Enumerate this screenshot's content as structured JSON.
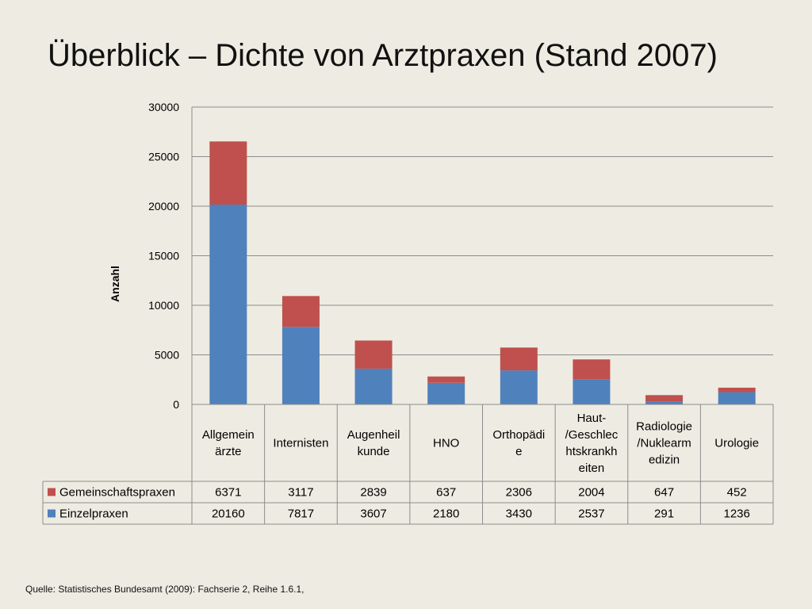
{
  "slide": {
    "title": "Überblick – Dichte von Arztpraxen (Stand 2007)",
    "source": "Quelle: Statistisches Bundesamt (2009): Fachserie 2, Reihe 1.6.1,"
  },
  "chart_data": {
    "type": "bar",
    "stacked": true,
    "title": "",
    "xlabel": "",
    "ylabel": "Anzahl",
    "ylim": [
      0,
      30000
    ],
    "yticks": [
      0,
      5000,
      10000,
      15000,
      20000,
      25000,
      30000
    ],
    "grid": true,
    "legend": "data-table",
    "categories": [
      [
        "Allgemein",
        "ärzte"
      ],
      [
        "Internisten"
      ],
      [
        "Augenheil",
        "kunde"
      ],
      [
        "HNO"
      ],
      [
        "Orthopädi",
        "e"
      ],
      [
        "Haut-",
        "/Geschlec",
        "htskrankh",
        "eiten"
      ],
      [
        "Radiologie",
        "/Nuklearm",
        "edizin"
      ],
      [
        "Urologie"
      ]
    ],
    "series": [
      {
        "name": "Einzelpraxen",
        "color": "#4f81bd",
        "values": [
          20160,
          7817,
          3607,
          2180,
          3430,
          2537,
          291,
          1236
        ]
      },
      {
        "name": "Gemeinschaftspraxen",
        "color": "#c0504d",
        "values": [
          6371,
          3117,
          2839,
          637,
          2306,
          2004,
          647,
          452
        ]
      }
    ],
    "table_row_order": [
      1,
      0
    ]
  }
}
